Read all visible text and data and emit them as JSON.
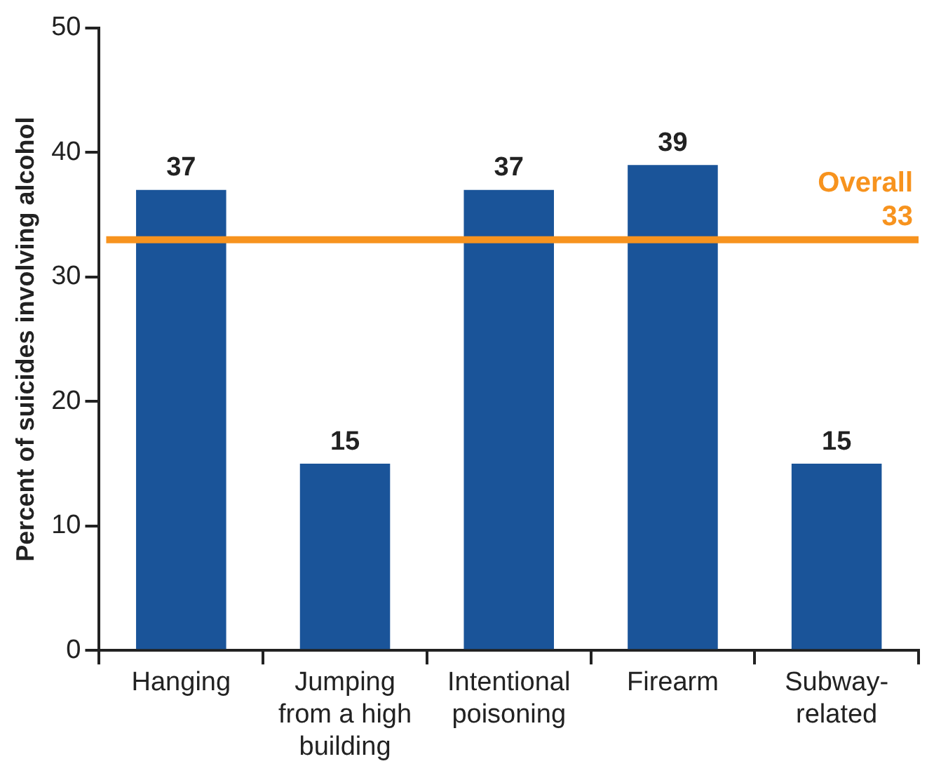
{
  "chart_data": {
    "type": "bar",
    "ylabel": "Percent of suicides involving alcohol",
    "categories": [
      "Hanging",
      "Jumping from a high building",
      "Intentional poisoning",
      "Firearm",
      "Subway-related"
    ],
    "values": [
      37,
      15,
      37,
      39,
      15
    ],
    "color": "#1a5499",
    "ylim": [
      0,
      50
    ],
    "yticks": [
      0,
      10,
      20,
      30,
      40,
      50
    ],
    "grid": false,
    "legend": false,
    "data_labels": true,
    "ref_lines": [
      {
        "axis": "y",
        "value": 33,
        "label": "Overall 33",
        "color": "#f7931e"
      }
    ]
  }
}
